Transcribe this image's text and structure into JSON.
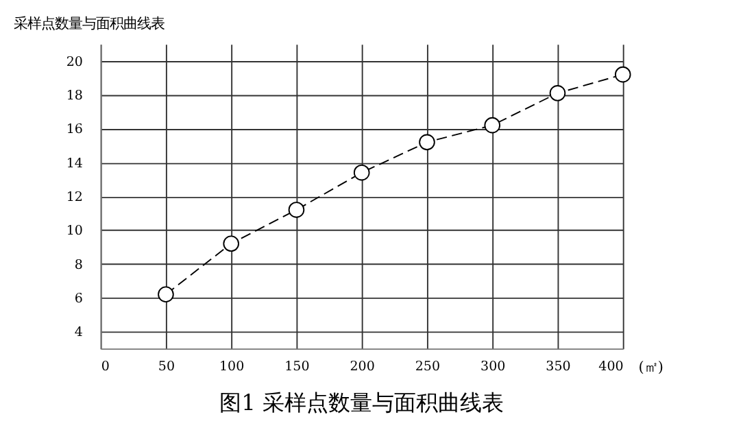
{
  "chart_data": {
    "type": "line",
    "title": "采样点数量与面积曲线表",
    "xlabel": "(㎡)",
    "x": [
      50,
      100,
      150,
      200,
      250,
      300,
      350,
      400
    ],
    "series": [
      {
        "color": "#000000",
        "values": [
          6.2,
          9.2,
          11.2,
          13.4,
          15.2,
          16.2,
          18.1,
          19.2
        ]
      }
    ],
    "xlim": [
      0,
      400
    ],
    "xticks": [
      0,
      50,
      100,
      150,
      200,
      250,
      300,
      350,
      400
    ],
    "ylim": [
      3,
      21
    ],
    "yticks": [
      4,
      6,
      8,
      10,
      12,
      14,
      16,
      18,
      20
    ],
    "grid": true,
    "marker": "circle",
    "line_style": "dashed",
    "annotations": [
      "图1  采样点数量与面积曲线表"
    ]
  }
}
